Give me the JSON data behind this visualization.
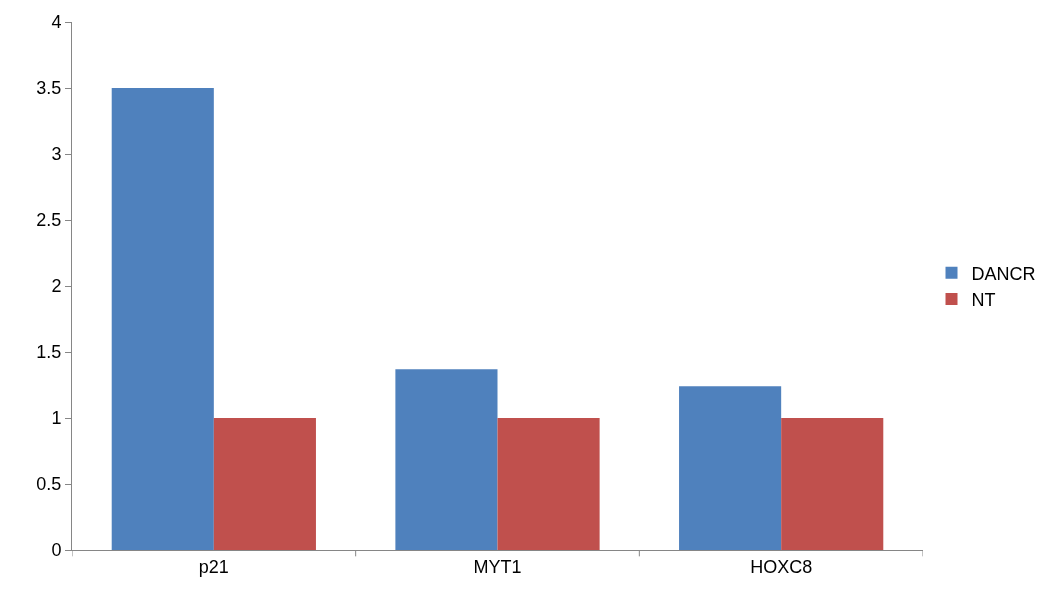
{
  "chart_data": {
    "type": "bar",
    "categories": [
      "p21",
      "MYT1",
      "HOXC8"
    ],
    "series": [
      {
        "name": "DANCR",
        "color": "#4f81bd",
        "values": [
          3.5,
          1.37,
          1.24
        ]
      },
      {
        "name": "NT",
        "color": "#c0504d",
        "values": [
          1,
          1,
          1
        ]
      }
    ],
    "ylim": [
      0,
      4
    ],
    "yticks": [
      0,
      0.5,
      1,
      1.5,
      2,
      2.5,
      3,
      3.5,
      4
    ],
    "legend": "right"
  }
}
